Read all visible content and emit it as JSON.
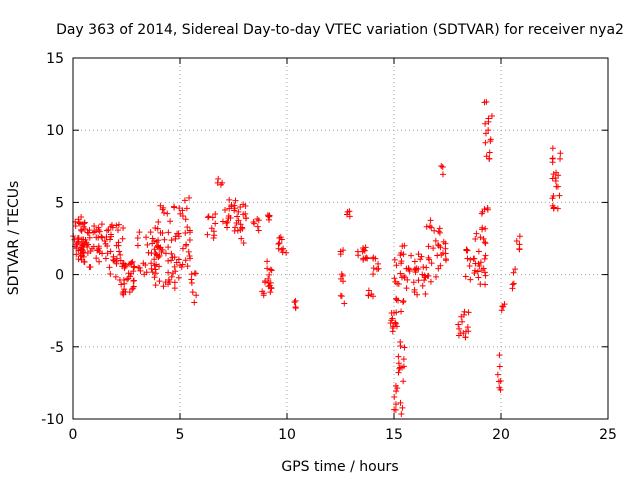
{
  "chart_data": {
    "type": "scatter",
    "title": "Day 363 of 2014, Sidereal Day-to-day VTEC variation (SDTVAR) for receiver nya2",
    "xlabel": "GPS time / hours",
    "ylabel": "SDTVAR / TECUs",
    "xlim": [
      0,
      25
    ],
    "ylim": [
      -10,
      15
    ],
    "xticks": [
      "0",
      "5",
      "10",
      "15",
      "20",
      "25"
    ],
    "yticks": [
      "-10",
      "-5",
      "0",
      "5",
      "10",
      "15"
    ],
    "grid": true,
    "marker": "+",
    "color": "#ff0000",
    "clusters": [
      {
        "x": [
          0.0,
          0.6
        ],
        "y": [
          1.0,
          4.0
        ],
        "n": 40
      },
      {
        "x": [
          0.4,
          1.6
        ],
        "y": [
          0.5,
          3.5
        ],
        "n": 45
      },
      {
        "x": [
          1.5,
          2.4
        ],
        "y": [
          -0.5,
          3.5
        ],
        "n": 35
      },
      {
        "x": [
          2.2,
          3.0
        ],
        "y": [
          -1.5,
          1.0
        ],
        "n": 30
      },
      {
        "x": [
          3.0,
          4.0
        ],
        "y": [
          0.0,
          3.0
        ],
        "n": 30
      },
      {
        "x": [
          3.8,
          4.6
        ],
        "y": [
          -1.0,
          5.0
        ],
        "n": 35
      },
      {
        "x": [
          4.6,
          5.5
        ],
        "y": [
          0.5,
          5.5
        ],
        "n": 35
      },
      {
        "x": [
          4.4,
          5.0
        ],
        "y": [
          -1.0,
          1.5
        ],
        "n": 12
      },
      {
        "x": [
          5.5,
          5.8
        ],
        "y": [
          -2.0,
          0.5
        ],
        "n": 8
      },
      {
        "x": [
          6.2,
          6.7
        ],
        "y": [
          2.5,
          4.2
        ],
        "n": 10
      },
      {
        "x": [
          6.7,
          7.0
        ],
        "y": [
          6.0,
          7.0
        ],
        "n": 4
      },
      {
        "x": [
          7.0,
          7.6
        ],
        "y": [
          3.0,
          5.2
        ],
        "n": 18
      },
      {
        "x": [
          7.6,
          8.1
        ],
        "y": [
          2.0,
          5.0
        ],
        "n": 18
      },
      {
        "x": [
          8.4,
          8.7
        ],
        "y": [
          3.0,
          4.0
        ],
        "n": 6
      },
      {
        "x": [
          8.8,
          9.3
        ],
        "y": [
          -1.5,
          1.0
        ],
        "n": 18
      },
      {
        "x": [
          9.0,
          9.2
        ],
        "y": [
          3.5,
          4.2
        ],
        "n": 5
      },
      {
        "x": [
          9.6,
          10.0
        ],
        "y": [
          1.5,
          2.8
        ],
        "n": 10
      },
      {
        "x": [
          10.3,
          10.5
        ],
        "y": [
          -2.5,
          -1.5
        ],
        "n": 4
      },
      {
        "x": [
          12.5,
          12.7
        ],
        "y": [
          -2.8,
          2.0
        ],
        "n": 10
      },
      {
        "x": [
          12.8,
          13.0
        ],
        "y": [
          4.0,
          4.5
        ],
        "n": 4
      },
      {
        "x": [
          13.3,
          13.8
        ],
        "y": [
          1.0,
          2.0
        ],
        "n": 12
      },
      {
        "x": [
          13.8,
          14.1
        ],
        "y": [
          -1.5,
          -0.8
        ],
        "n": 5
      },
      {
        "x": [
          14.0,
          14.3
        ],
        "y": [
          0.0,
          1.5
        ],
        "n": 8
      },
      {
        "x": [
          14.8,
          15.1
        ],
        "y": [
          -4.0,
          -2.5
        ],
        "n": 10
      },
      {
        "x": [
          15.0,
          15.5
        ],
        "y": [
          -9.9,
          2.5
        ],
        "n": 45
      },
      {
        "x": [
          15.3,
          16.0
        ],
        "y": [
          -1.5,
          1.5
        ],
        "n": 15
      },
      {
        "x": [
          16.0,
          16.7
        ],
        "y": [
          -1.5,
          1.5
        ],
        "n": 20
      },
      {
        "x": [
          16.5,
          17.5
        ],
        "y": [
          -0.5,
          4.0
        ],
        "n": 30
      },
      {
        "x": [
          17.2,
          17.4
        ],
        "y": [
          6.5,
          7.6
        ],
        "n": 3
      },
      {
        "x": [
          18.0,
          18.5
        ],
        "y": [
          -4.5,
          -2.5
        ],
        "n": 15
      },
      {
        "x": [
          18.3,
          18.6
        ],
        "y": [
          -0.5,
          2.5
        ],
        "n": 8
      },
      {
        "x": [
          18.7,
          19.3
        ],
        "y": [
          -1.0,
          3.0
        ],
        "n": 25
      },
      {
        "x": [
          19.1,
          19.4
        ],
        "y": [
          3.0,
          5.0
        ],
        "n": 8
      },
      {
        "x": [
          19.2,
          19.6
        ],
        "y": [
          8.0,
          12.3
        ],
        "n": 15
      },
      {
        "x": [
          19.8,
          20.0
        ],
        "y": [
          -8.0,
          -5.5
        ],
        "n": 7
      },
      {
        "x": [
          20.0,
          20.2
        ],
        "y": [
          -2.8,
          -2.0
        ],
        "n": 4
      },
      {
        "x": [
          20.4,
          20.7
        ],
        "y": [
          -1.0,
          0.5
        ],
        "n": 5
      },
      {
        "x": [
          20.7,
          20.9
        ],
        "y": [
          1.5,
          3.0
        ],
        "n": 5
      },
      {
        "x": [
          22.4,
          22.8
        ],
        "y": [
          4.5,
          9.0
        ],
        "n": 22
      }
    ]
  }
}
